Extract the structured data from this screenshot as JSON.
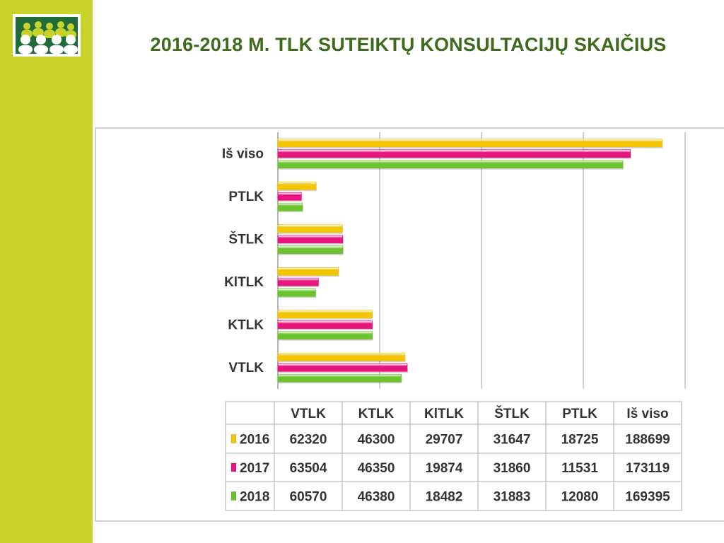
{
  "slide": {
    "title": "2016-2018 M. TLK SUTEIKTŲ KONSULTACIJŲ SKAIČIUS"
  },
  "logo": {
    "icon": "people-group-icon",
    "colors": {
      "background": "#1f6b3a",
      "figures": "#c8d22b"
    }
  },
  "colors": {
    "sidebar": "#c8d22b",
    "title": "#3d6b1d",
    "series_2016": "#f2c500",
    "series_2017": "#e8157f",
    "series_2018": "#6cc32d"
  },
  "chart_data": {
    "type": "bar",
    "orientation": "horizontal",
    "categories": [
      "VTLK",
      "KTLK",
      "KlTLK",
      "ŠTLK",
      "PTLK",
      "Iš viso"
    ],
    "series": [
      {
        "name": "2016",
        "color": "#f2c500",
        "values": [
          62320,
          46300,
          29707,
          31647,
          18725,
          188699
        ]
      },
      {
        "name": "2017",
        "color": "#e8157f",
        "values": [
          63504,
          46350,
          19874,
          31860,
          11531,
          173119
        ]
      },
      {
        "name": "2018",
        "color": "#6cc32d",
        "values": [
          60570,
          46380,
          18482,
          31883,
          12080,
          169395
        ]
      }
    ],
    "xlim": [
      0,
      200000
    ],
    "grid": true,
    "legend": "data-table"
  }
}
